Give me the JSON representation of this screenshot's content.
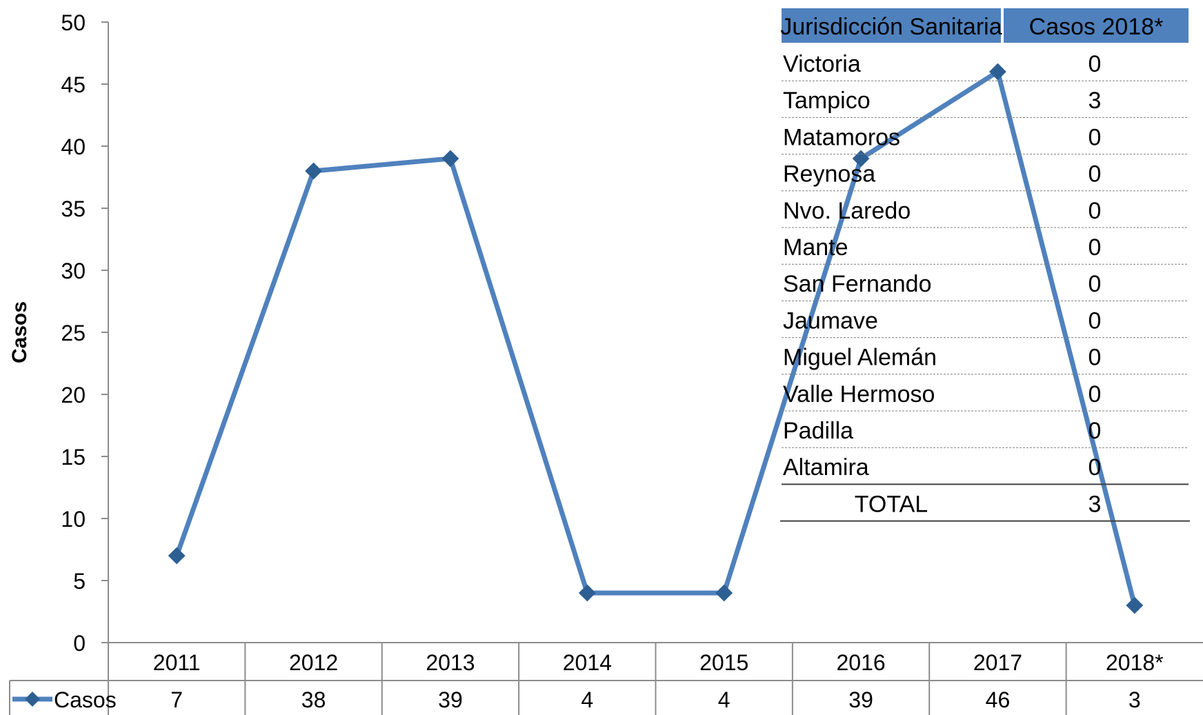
{
  "chart_data": {
    "type": "line",
    "categories": [
      "2011",
      "2012",
      "2013",
      "2014",
      "2015",
      "2016",
      "2017",
      "2018*"
    ],
    "series": [
      {
        "name": "Casos",
        "values": [
          7,
          38,
          39,
          4,
          4,
          39,
          46,
          3
        ],
        "color": "#4f81bd"
      }
    ],
    "ylabel": "Casos",
    "ylim": [
      0,
      50
    ],
    "yticks": [
      "0",
      "5",
      "10",
      "15",
      "20",
      "25",
      "30",
      "35",
      "40",
      "45",
      "50"
    ],
    "data_table": true,
    "legend": "data-table"
  },
  "inset_table": {
    "headers": [
      "Jurisdicción Sanitaria",
      "Casos  2018*"
    ],
    "header_color": "#4f81bd",
    "rows": [
      [
        "Victoria",
        "0"
      ],
      [
        "Tampico",
        "3"
      ],
      [
        "Matamoros",
        "0"
      ],
      [
        "Reynosa",
        "0"
      ],
      [
        "Nvo. Laredo",
        "0"
      ],
      [
        "Mante",
        "0"
      ],
      [
        "San Fernando",
        "0"
      ],
      [
        "Jaumave",
        "0"
      ],
      [
        "Miguel Alemán",
        "0"
      ],
      [
        "Valle Hermoso",
        "0"
      ],
      [
        "Padilla",
        "0"
      ],
      [
        "Altamira",
        "0"
      ]
    ],
    "total": [
      "TOTAL",
      "3"
    ]
  }
}
